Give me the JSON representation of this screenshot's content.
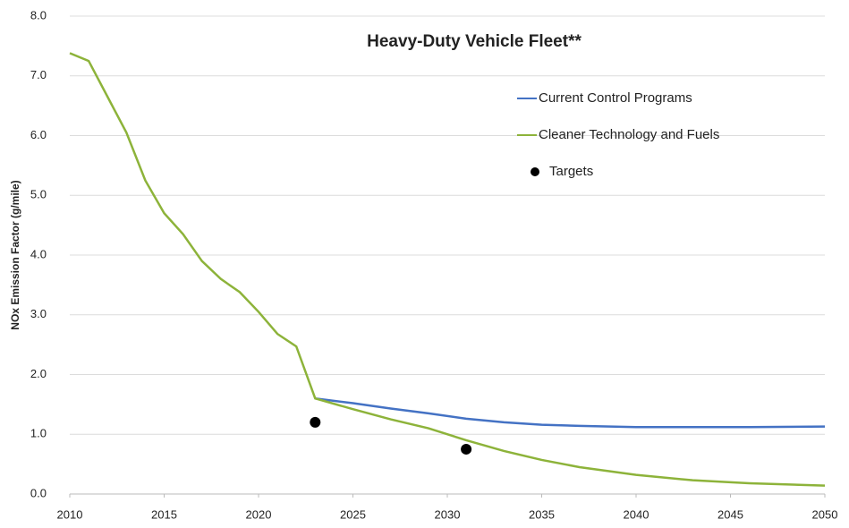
{
  "chart_data": {
    "type": "line",
    "title": "Heavy-Duty Vehicle Fleet**",
    "ylabel": "NOx Emission Factor (g/mile)",
    "xlim": [
      2010,
      2050
    ],
    "xticks": [
      2010,
      2015,
      2020,
      2025,
      2030,
      2035,
      2040,
      2045,
      2050
    ],
    "ylim": [
      0,
      8
    ],
    "yticks": [
      {
        "value": 0,
        "label": "0.0"
      },
      {
        "value": 1,
        "label": "1.0"
      },
      {
        "value": 2,
        "label": "2.0"
      },
      {
        "value": 3,
        "label": "3.0"
      },
      {
        "value": 4,
        "label": "4.0"
      },
      {
        "value": 5,
        "label": "5.0"
      },
      {
        "value": 6,
        "label": "6.0"
      },
      {
        "value": 7,
        "label": "7.0"
      },
      {
        "value": 8,
        "label": "8.0"
      }
    ],
    "grid": true,
    "legend": "upper right",
    "series": [
      {
        "name": "Current Control Programs",
        "type": "line",
        "color": "#4472c4",
        "x": [
          2023,
          2025,
          2027,
          2029,
          2031,
          2033,
          2035,
          2037,
          2040,
          2043,
          2046,
          2050
        ],
        "values": [
          1.6,
          1.52,
          1.43,
          1.35,
          1.26,
          1.2,
          1.16,
          1.14,
          1.12,
          1.12,
          1.12,
          1.13
        ]
      },
      {
        "name": "Cleaner Technology and Fuels",
        "type": "line",
        "color": "#8db33a",
        "x": [
          2010,
          2011,
          2012,
          2013,
          2014,
          2015,
          2016,
          2017,
          2018,
          2019,
          2020,
          2021,
          2022,
          2023,
          2025,
          2027,
          2029,
          2031,
          2033,
          2035,
          2037,
          2040,
          2043,
          2046,
          2050
        ],
        "values": [
          7.38,
          7.25,
          6.65,
          6.05,
          5.25,
          4.7,
          4.35,
          3.9,
          3.6,
          3.38,
          3.05,
          2.68,
          2.47,
          1.6,
          1.42,
          1.25,
          1.1,
          0.9,
          0.72,
          0.57,
          0.45,
          0.32,
          0.23,
          0.18,
          0.14
        ]
      },
      {
        "name": "Targets",
        "type": "scatter",
        "color": "#000000",
        "x": [
          2023,
          2031
        ],
        "values": [
          1.2,
          0.75
        ]
      }
    ]
  }
}
